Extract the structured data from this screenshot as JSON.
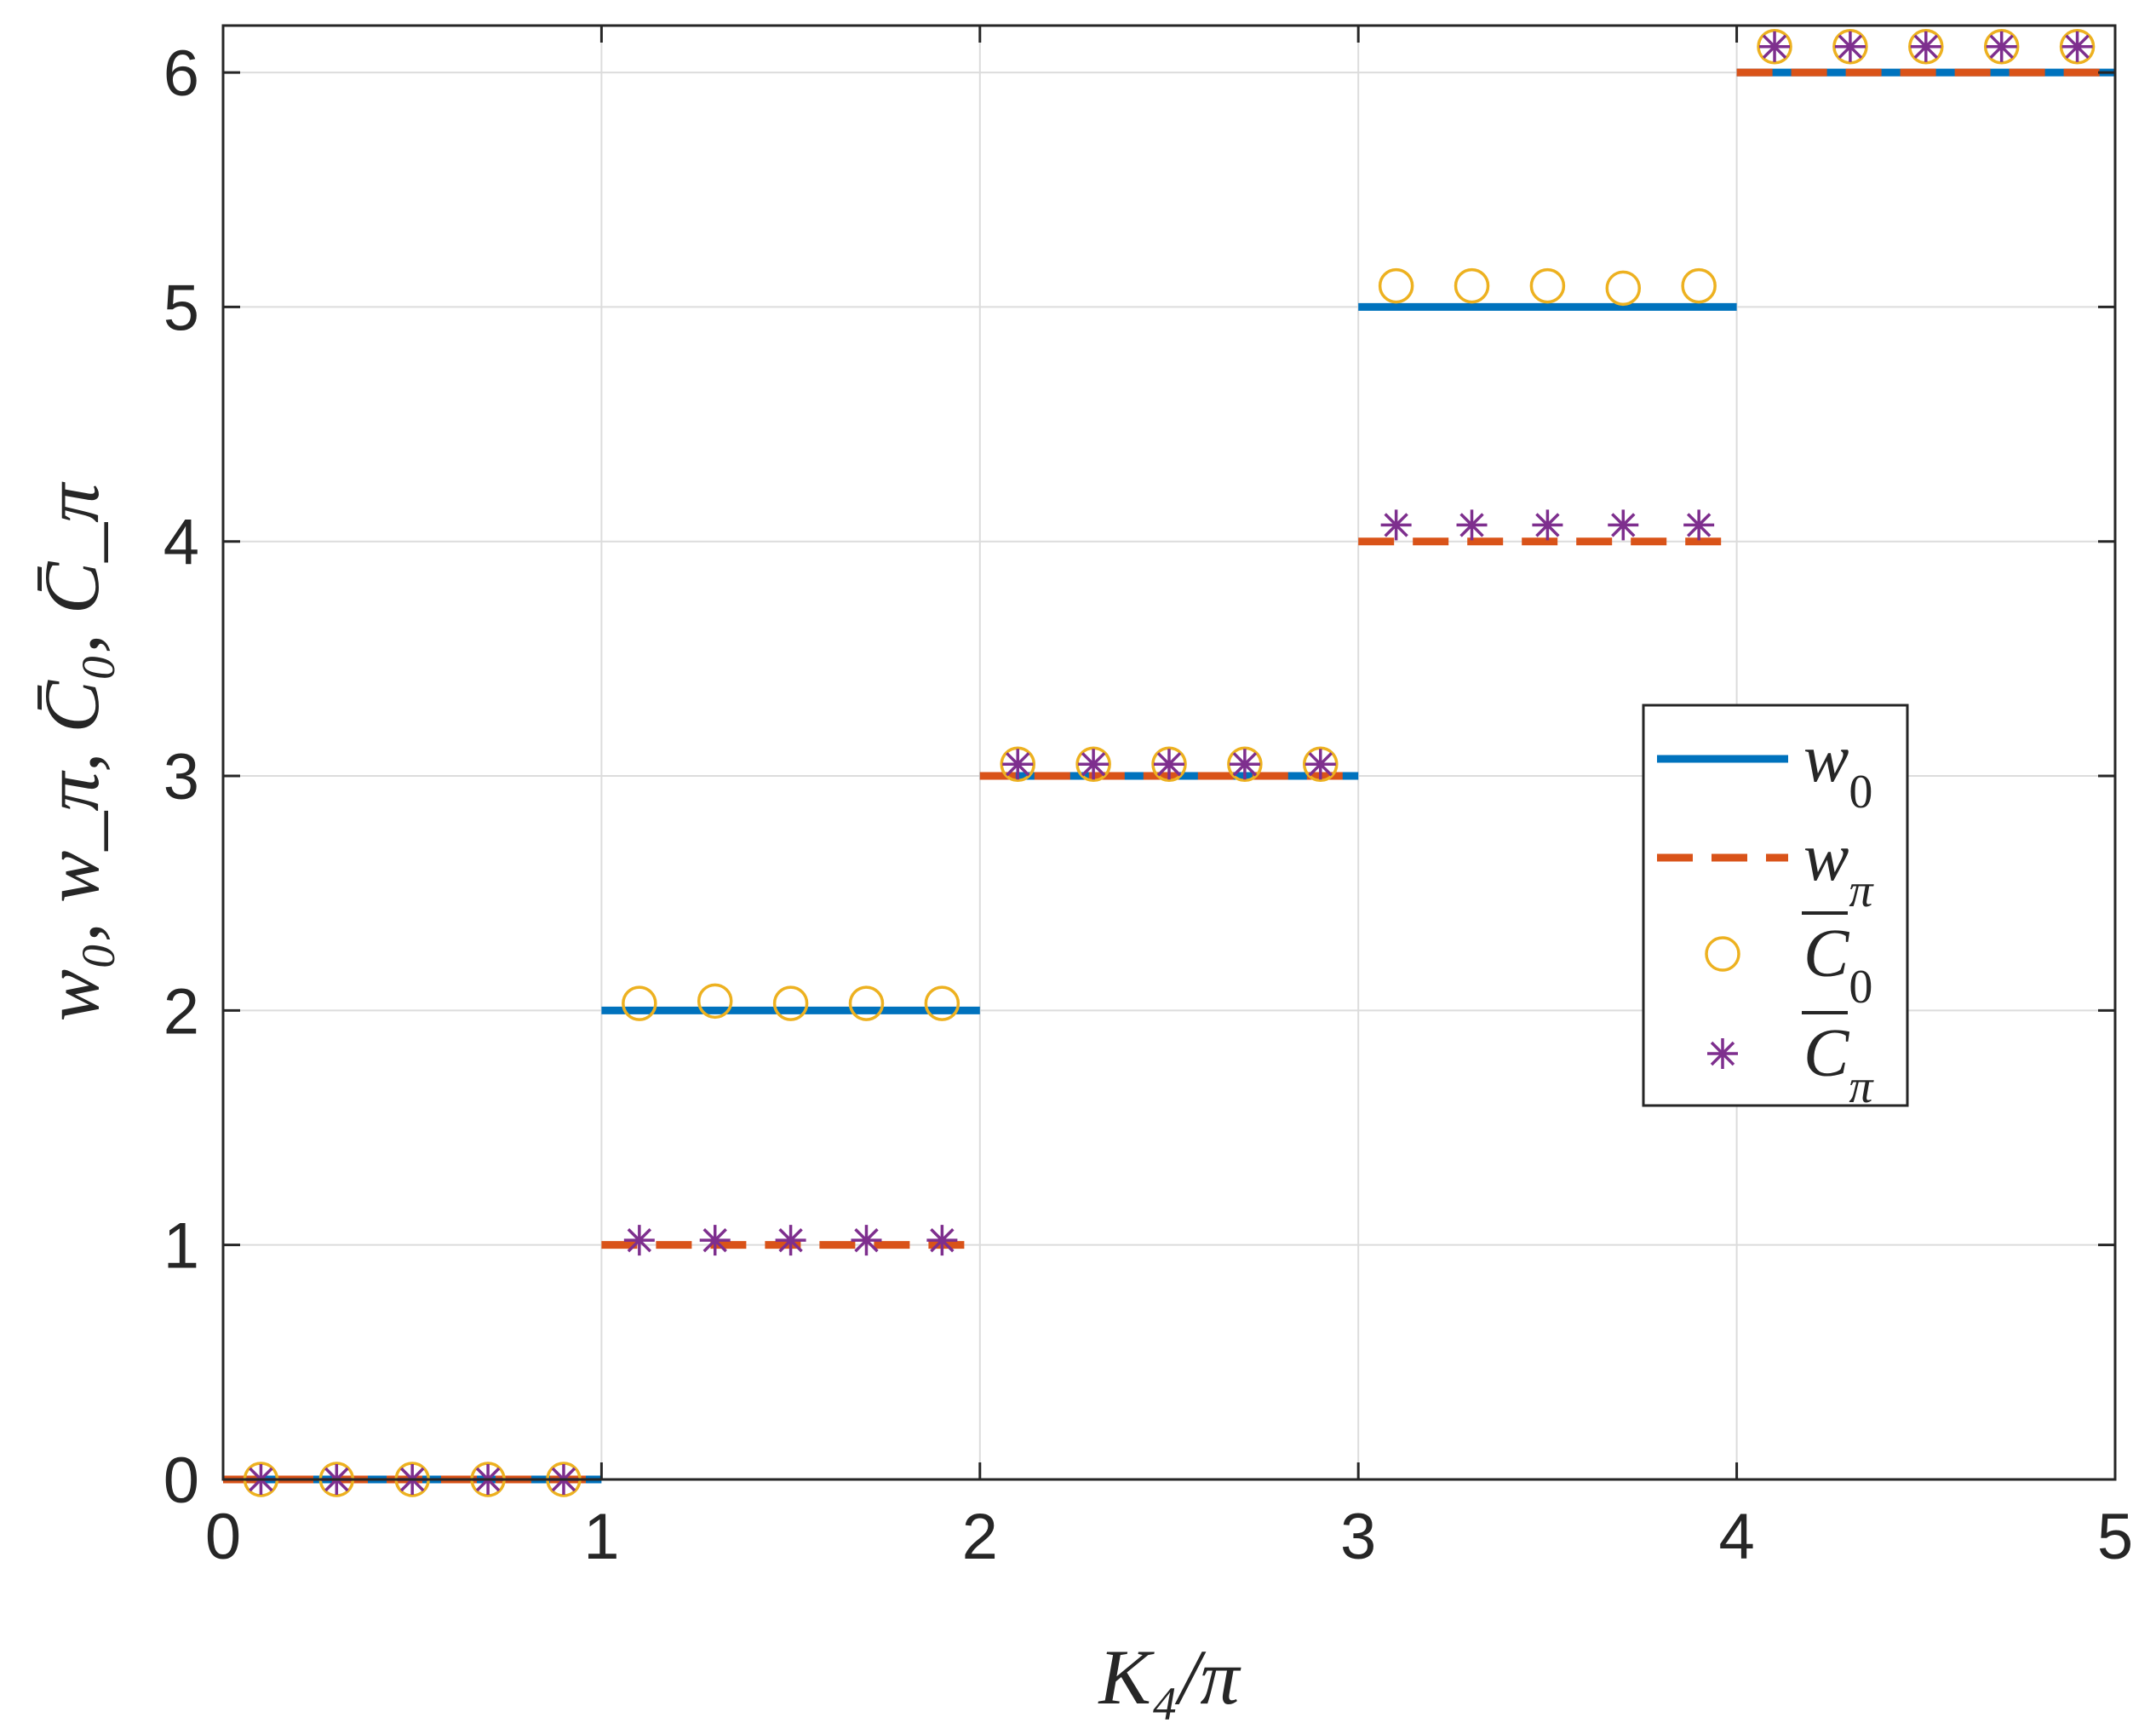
{
  "chart_data": {
    "type": "line",
    "title": "",
    "xlabel": "K₄/π",
    "ylabel": "w₀, w_π, C̄₀, C̄_π",
    "xlim": [
      0,
      5
    ],
    "ylim": [
      0,
      6.2
    ],
    "xticks": [
      "0",
      "1",
      "2",
      "3",
      "4",
      "5"
    ],
    "yticks": [
      "0",
      "1",
      "2",
      "3",
      "4",
      "5",
      "6"
    ],
    "grid": true,
    "legend_position": "right",
    "series": [
      {
        "name": "w",
        "subscript": "0",
        "style": "solid",
        "color": "#0072BD",
        "segments": [
          {
            "x0": 0,
            "x1": 1,
            "y": 0
          },
          {
            "x0": 1,
            "x1": 2,
            "y": 2
          },
          {
            "x0": 2,
            "x1": 3,
            "y": 3
          },
          {
            "x0": 3,
            "x1": 4,
            "y": 5
          },
          {
            "x0": 4,
            "x1": 5,
            "y": 6
          }
        ]
      },
      {
        "name": "w",
        "subscript": "π",
        "style": "dashed",
        "color": "#D95319",
        "segments": [
          {
            "x0": 0,
            "x1": 1,
            "y": 0
          },
          {
            "x0": 1,
            "x1": 2,
            "y": 1
          },
          {
            "x0": 2,
            "x1": 3,
            "y": 3
          },
          {
            "x0": 3,
            "x1": 4,
            "y": 4
          },
          {
            "x0": 4,
            "x1": 5,
            "y": 6
          }
        ]
      },
      {
        "name": "C",
        "subscript": "0",
        "style": "circle-marker",
        "color": "#EDB120",
        "points": [
          {
            "x": 0.1,
            "y": 0
          },
          {
            "x": 0.3,
            "y": 0
          },
          {
            "x": 0.5,
            "y": 0
          },
          {
            "x": 0.7,
            "y": 0
          },
          {
            "x": 0.9,
            "y": 0
          },
          {
            "x": 1.1,
            "y": 2.03
          },
          {
            "x": 1.3,
            "y": 2.04
          },
          {
            "x": 1.5,
            "y": 2.03
          },
          {
            "x": 1.7,
            "y": 2.03
          },
          {
            "x": 1.9,
            "y": 2.03
          },
          {
            "x": 2.1,
            "y": 3.05
          },
          {
            "x": 2.3,
            "y": 3.05
          },
          {
            "x": 2.5,
            "y": 3.05
          },
          {
            "x": 2.7,
            "y": 3.05
          },
          {
            "x": 2.9,
            "y": 3.05
          },
          {
            "x": 3.1,
            "y": 5.09
          },
          {
            "x": 3.3,
            "y": 5.09
          },
          {
            "x": 3.5,
            "y": 5.09
          },
          {
            "x": 3.7,
            "y": 5.08
          },
          {
            "x": 3.9,
            "y": 5.09
          },
          {
            "x": 4.1,
            "y": 6.11
          },
          {
            "x": 4.3,
            "y": 6.11
          },
          {
            "x": 4.5,
            "y": 6.11
          },
          {
            "x": 4.7,
            "y": 6.11
          },
          {
            "x": 4.9,
            "y": 6.11
          }
        ]
      },
      {
        "name": "C",
        "subscript": "π",
        "style": "asterisk-marker",
        "color": "#7E2F8E",
        "points": [
          {
            "x": 0.1,
            "y": 0
          },
          {
            "x": 0.3,
            "y": 0
          },
          {
            "x": 0.5,
            "y": 0
          },
          {
            "x": 0.7,
            "y": 0
          },
          {
            "x": 0.9,
            "y": 0
          },
          {
            "x": 1.1,
            "y": 1.02
          },
          {
            "x": 1.3,
            "y": 1.02
          },
          {
            "x": 1.5,
            "y": 1.02
          },
          {
            "x": 1.7,
            "y": 1.02
          },
          {
            "x": 1.9,
            "y": 1.02
          },
          {
            "x": 2.1,
            "y": 3.05
          },
          {
            "x": 2.3,
            "y": 3.05
          },
          {
            "x": 2.5,
            "y": 3.05
          },
          {
            "x": 2.7,
            "y": 3.05
          },
          {
            "x": 2.9,
            "y": 3.05
          },
          {
            "x": 3.1,
            "y": 4.07
          },
          {
            "x": 3.3,
            "y": 4.07
          },
          {
            "x": 3.5,
            "y": 4.07
          },
          {
            "x": 3.7,
            "y": 4.07
          },
          {
            "x": 3.9,
            "y": 4.07
          },
          {
            "x": 4.1,
            "y": 6.11
          },
          {
            "x": 4.3,
            "y": 6.11
          },
          {
            "x": 4.5,
            "y": 6.11
          },
          {
            "x": 4.7,
            "y": 6.11
          },
          {
            "x": 4.9,
            "y": 6.11
          }
        ]
      }
    ]
  }
}
